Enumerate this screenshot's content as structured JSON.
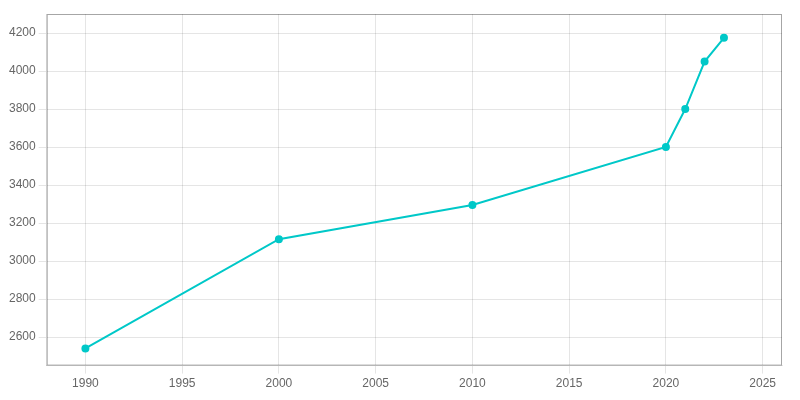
{
  "chart_data": {
    "type": "line",
    "x": [
      1990,
      2000,
      2010,
      2020,
      2021,
      2022,
      2023
    ],
    "values": [
      2540,
      3115,
      3295,
      3600,
      3800,
      4050,
      4175
    ],
    "color": "#00C8C8",
    "marker": "o",
    "xlim": [
      1988,
      2026
    ],
    "ylim": [
      2450,
      4300
    ],
    "xticks": [
      1990,
      1995,
      2000,
      2005,
      2010,
      2015,
      2020,
      2025
    ],
    "yticks": [
      2600,
      2800,
      3000,
      3200,
      3400,
      3600,
      3800,
      4000,
      4200
    ],
    "grid": true
  }
}
